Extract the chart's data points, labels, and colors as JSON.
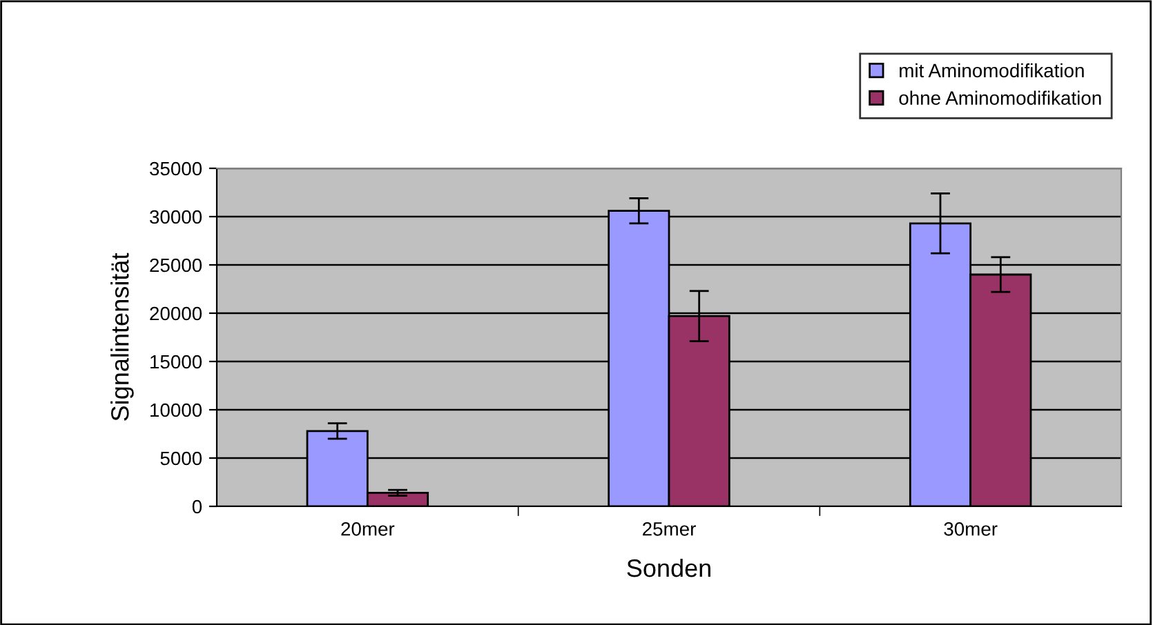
{
  "chart_data": {
    "type": "bar",
    "xlabel": "Sonden",
    "ylabel": "Signalintensität",
    "categories": [
      "20mer",
      "25mer",
      "30mer"
    ],
    "series": [
      {
        "name": "mit Aminomodifikation",
        "color": "#9999ff",
        "values": [
          7800,
          30600,
          29300
        ],
        "errors": [
          800,
          1300,
          3100
        ]
      },
      {
        "name": "ohne Aminomodifikation",
        "color": "#993366",
        "values": [
          1400,
          19700,
          24000
        ],
        "errors": [
          300,
          2600,
          1800
        ]
      }
    ],
    "ylim": [
      0,
      35000
    ],
    "yticks": [
      0,
      5000,
      10000,
      15000,
      20000,
      25000,
      30000,
      35000
    ],
    "grid": "y",
    "legend": "top right"
  }
}
